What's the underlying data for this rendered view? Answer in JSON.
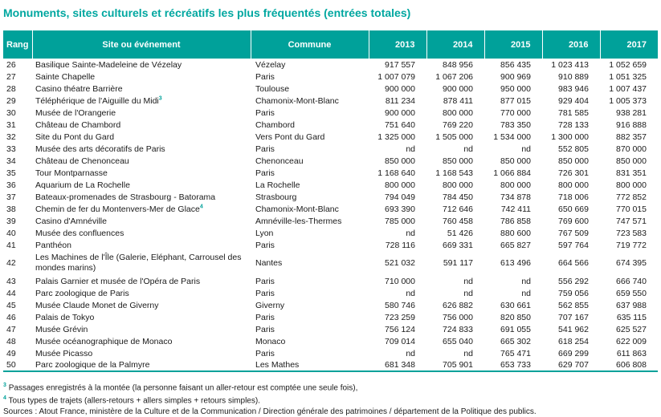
{
  "title": "Monuments, sites culturels et récréatifs les plus fréquentés (entrées totales)",
  "header": {
    "rank": "Rang",
    "site": "Site ou événement",
    "commune": "Commune",
    "years": [
      "2013",
      "2014",
      "2015",
      "2016",
      "2017"
    ]
  },
  "rows": [
    {
      "rank": "26",
      "site": "Basilique Sainte-Madeleine de Vézelay",
      "note": "",
      "commune": "Vézelay",
      "v": [
        "917 557",
        "848 956",
        "856 435",
        "1 023 413",
        "1 052 659"
      ]
    },
    {
      "rank": "27",
      "site": "Sainte Chapelle",
      "note": "",
      "commune": "Paris",
      "v": [
        "1 007 079",
        "1 067 206",
        "900 969",
        "910 889",
        "1 051 325"
      ]
    },
    {
      "rank": "28",
      "site": "Casino théatre Barrière",
      "note": "",
      "commune": "Toulouse",
      "v": [
        "900 000",
        "900 000",
        "950 000",
        "983 946",
        "1 007 437"
      ]
    },
    {
      "rank": "29",
      "site": "Téléphérique de l'Aiguille du Midi",
      "note": "3",
      "commune": "Chamonix-Mont-Blanc",
      "v": [
        "811 234",
        "878 411",
        "877 015",
        "929 404",
        "1 005 373"
      ]
    },
    {
      "rank": "30",
      "site": "Musée de l'Orangerie",
      "note": "",
      "commune": "Paris",
      "v": [
        "900 000",
        "800 000",
        "770 000",
        "781 585",
        "938 281"
      ]
    },
    {
      "rank": "31",
      "site": "Château de Chambord",
      "note": "",
      "commune": "Chambord",
      "v": [
        "751 640",
        "769 220",
        "783 350",
        "728 133",
        "916 888"
      ]
    },
    {
      "rank": "32",
      "site": "Site du Pont du Gard",
      "note": "",
      "commune": "Vers Pont du Gard",
      "v": [
        "1 325 000",
        "1 505 000",
        "1 534 000",
        "1 300 000",
        "882 357"
      ]
    },
    {
      "rank": "33",
      "site": "Musée des arts décoratifs de Paris",
      "note": "",
      "commune": "Paris",
      "v": [
        "nd",
        "nd",
        "nd",
        "552 805",
        "870 000"
      ]
    },
    {
      "rank": "34",
      "site": "Château de Chenonceau",
      "note": "",
      "commune": "Chenonceau",
      "v": [
        "850 000",
        "850 000",
        "850 000",
        "850 000",
        "850 000"
      ]
    },
    {
      "rank": "35",
      "site": "Tour Montparnasse",
      "note": "",
      "commune": "Paris",
      "v": [
        "1 168 640",
        "1 168 543",
        "1 066 884",
        "726 301",
        "831 351"
      ]
    },
    {
      "rank": "36",
      "site": "Aquarium de La Rochelle",
      "note": "",
      "commune": "La Rochelle",
      "v": [
        "800 000",
        "800 000",
        "800 000",
        "800 000",
        "800 000"
      ]
    },
    {
      "rank": "37",
      "site": "Bateaux-promenades de Strasbourg - Batorama",
      "note": "",
      "commune": "Strasbourg",
      "v": [
        "794 049",
        "784 450",
        "734 878",
        "718 006",
        "772 852"
      ]
    },
    {
      "rank": "38",
      "site": "Chemin de fer du Montenvers-Mer de Glace",
      "note": "4",
      "commune": "Chamonix-Mont-Blanc",
      "v": [
        "693 390",
        "712 646",
        "742 411",
        "650 669",
        "770 015"
      ]
    },
    {
      "rank": "39",
      "site": "Casino d'Amnéville",
      "note": "",
      "commune": "Amnéville-les-Thermes",
      "v": [
        "785 000",
        "760 458",
        "786 858",
        "769 600",
        "747 571"
      ]
    },
    {
      "rank": "40",
      "site": "Musée des confluences",
      "note": "",
      "commune": "Lyon",
      "v": [
        "nd",
        "51 426",
        "880 600",
        "767 509",
        "723 583"
      ]
    },
    {
      "rank": "41",
      "site": "Panthéon",
      "note": "",
      "commune": "Paris",
      "v": [
        "728 116",
        "669 331",
        "665 827",
        "597 764",
        "719 772"
      ]
    },
    {
      "rank": "42",
      "site": "Les Machines de l'Île (Galerie, Eléphant, Carrousel des mondes marins)",
      "note": "",
      "commune": "Nantes",
      "v": [
        "521 032",
        "591 117",
        "613 496",
        "664 566",
        "674 395"
      ],
      "tall": true
    },
    {
      "rank": "43",
      "site": "Palais Garnier et musée de l'Opéra de Paris",
      "note": "",
      "commune": "Paris",
      "v": [
        "710 000",
        "nd",
        "nd",
        "556 292",
        "666 740"
      ]
    },
    {
      "rank": "44",
      "site": "Parc zoologique de Paris",
      "note": "",
      "commune": "Paris",
      "v": [
        "nd",
        "nd",
        "nd",
        "759 056",
        "659 550"
      ]
    },
    {
      "rank": "45",
      "site": "Musée Claude Monet de Giverny",
      "note": "",
      "commune": "Giverny",
      "v": [
        "580 746",
        "626 882",
        "630 661",
        "562 855",
        "637 988"
      ]
    },
    {
      "rank": "46",
      "site": "Palais de Tokyo",
      "note": "",
      "commune": "Paris",
      "v": [
        "723 259",
        "756 000",
        "820 850",
        "707 167",
        "635 115"
      ]
    },
    {
      "rank": "47",
      "site": "Musée Grévin",
      "note": "",
      "commune": "Paris",
      "v": [
        "756 124",
        "724 833",
        "691 055",
        "541 962",
        "625 527"
      ]
    },
    {
      "rank": "48",
      "site": "Musée océanographique de Monaco",
      "note": "",
      "commune": "Monaco",
      "v": [
        "709 014",
        "655 040",
        "665 302",
        "618 254",
        "622 009"
      ]
    },
    {
      "rank": "49",
      "site": "Musée Picasso",
      "note": "",
      "commune": "Paris",
      "v": [
        "nd",
        "nd",
        "765 471",
        "669 299",
        "611 863"
      ]
    },
    {
      "rank": "50",
      "site": "Parc zoologique de la Palmyre",
      "note": "",
      "commune": "Les Mathes",
      "v": [
        "681 348",
        "705 901",
        "653 733",
        "629 707",
        "606 808"
      ]
    }
  ],
  "footnotes": [
    {
      "mark": "3",
      "text": "Passages enregistrés à la montée (la personne faisant un aller-retour est comptée une seule fois),"
    },
    {
      "mark": "4",
      "text": "Tous types de trajets (allers-retours + allers simples + retours simples)."
    },
    {
      "mark": "",
      "text": "Sources : Atout France, ministère de la Culture et de la Communication / Direction générale des patrimoines / département de la Politique des publics."
    }
  ],
  "colors": {
    "accent": "#00a19a",
    "title": "#00a7a0"
  }
}
